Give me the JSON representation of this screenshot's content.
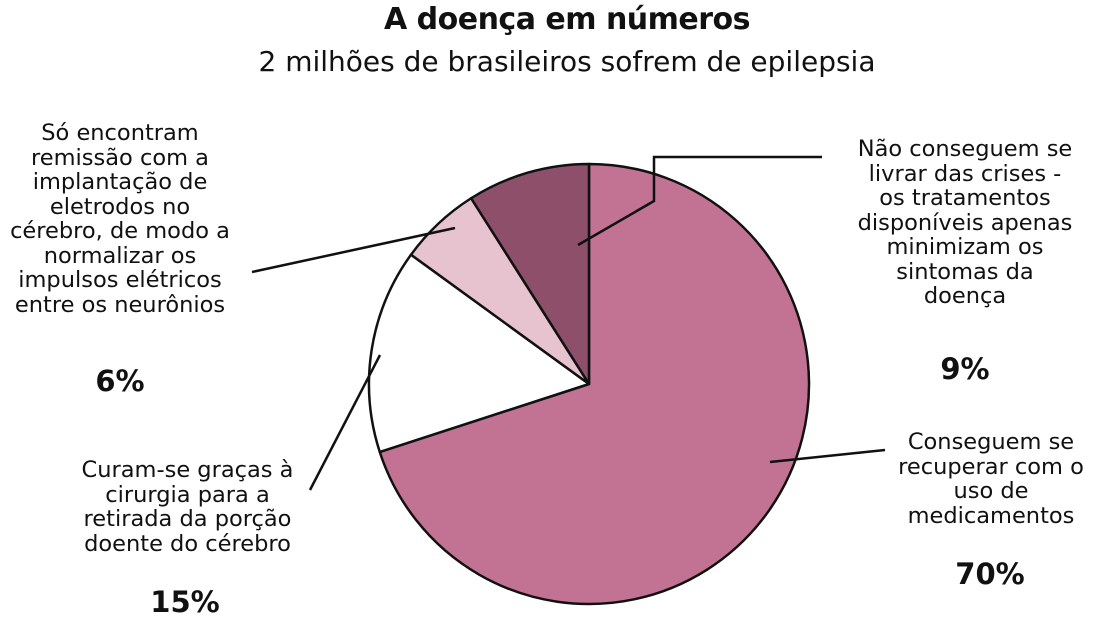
{
  "chart_data": {
    "type": "pie",
    "title": "A doença em números",
    "subtitle": "2 milhões de brasileiros sofrem de epilepsia",
    "slices": [
      {
        "label": "Conseguem se recuperar com o uso de medicamentos",
        "label_lines": "Conseguem se\nrecuperar com o\nuso de\nmedicamentos",
        "percent_text": "70%",
        "value": 70,
        "color": "#c27394"
      },
      {
        "label": "Curam-se graças à cirurgia para a retirada da porção doente do cérebro",
        "label_lines": "Curam-se graças à\ncirurgia para a\nretirada da porção\ndoente do cérebro",
        "percent_text": "15%",
        "value": 15,
        "color": "#ffffff"
      },
      {
        "label": "Só encontram remissão com a implantação de eletrodos no cérebro, de modo a normalizar os impulsos elétricos entre os neurônios",
        "label_lines": "Só encontram\nremissão com a\nimplantação de\neletrodos no\ncérebro, de modo a\nnormalizar os\nimpulsos elétricos\nentre os neurônios",
        "percent_text": "6%",
        "value": 6,
        "color": "#e6c3cf"
      },
      {
        "label": "Não conseguem se livrar das crises - os tratamentos disponíveis apenas minimizam os sintomas da doença",
        "label_lines": "Não conseguem se\nlivrar das crises -\nos tratamentos\ndisponíveis apenas\nminimizam os\nsintomas da\ndoença",
        "percent_text": "9%",
        "value": 9,
        "color": "#8e4f6b"
      }
    ],
    "start": "12 o'clock",
    "direction": "clockwise"
  }
}
